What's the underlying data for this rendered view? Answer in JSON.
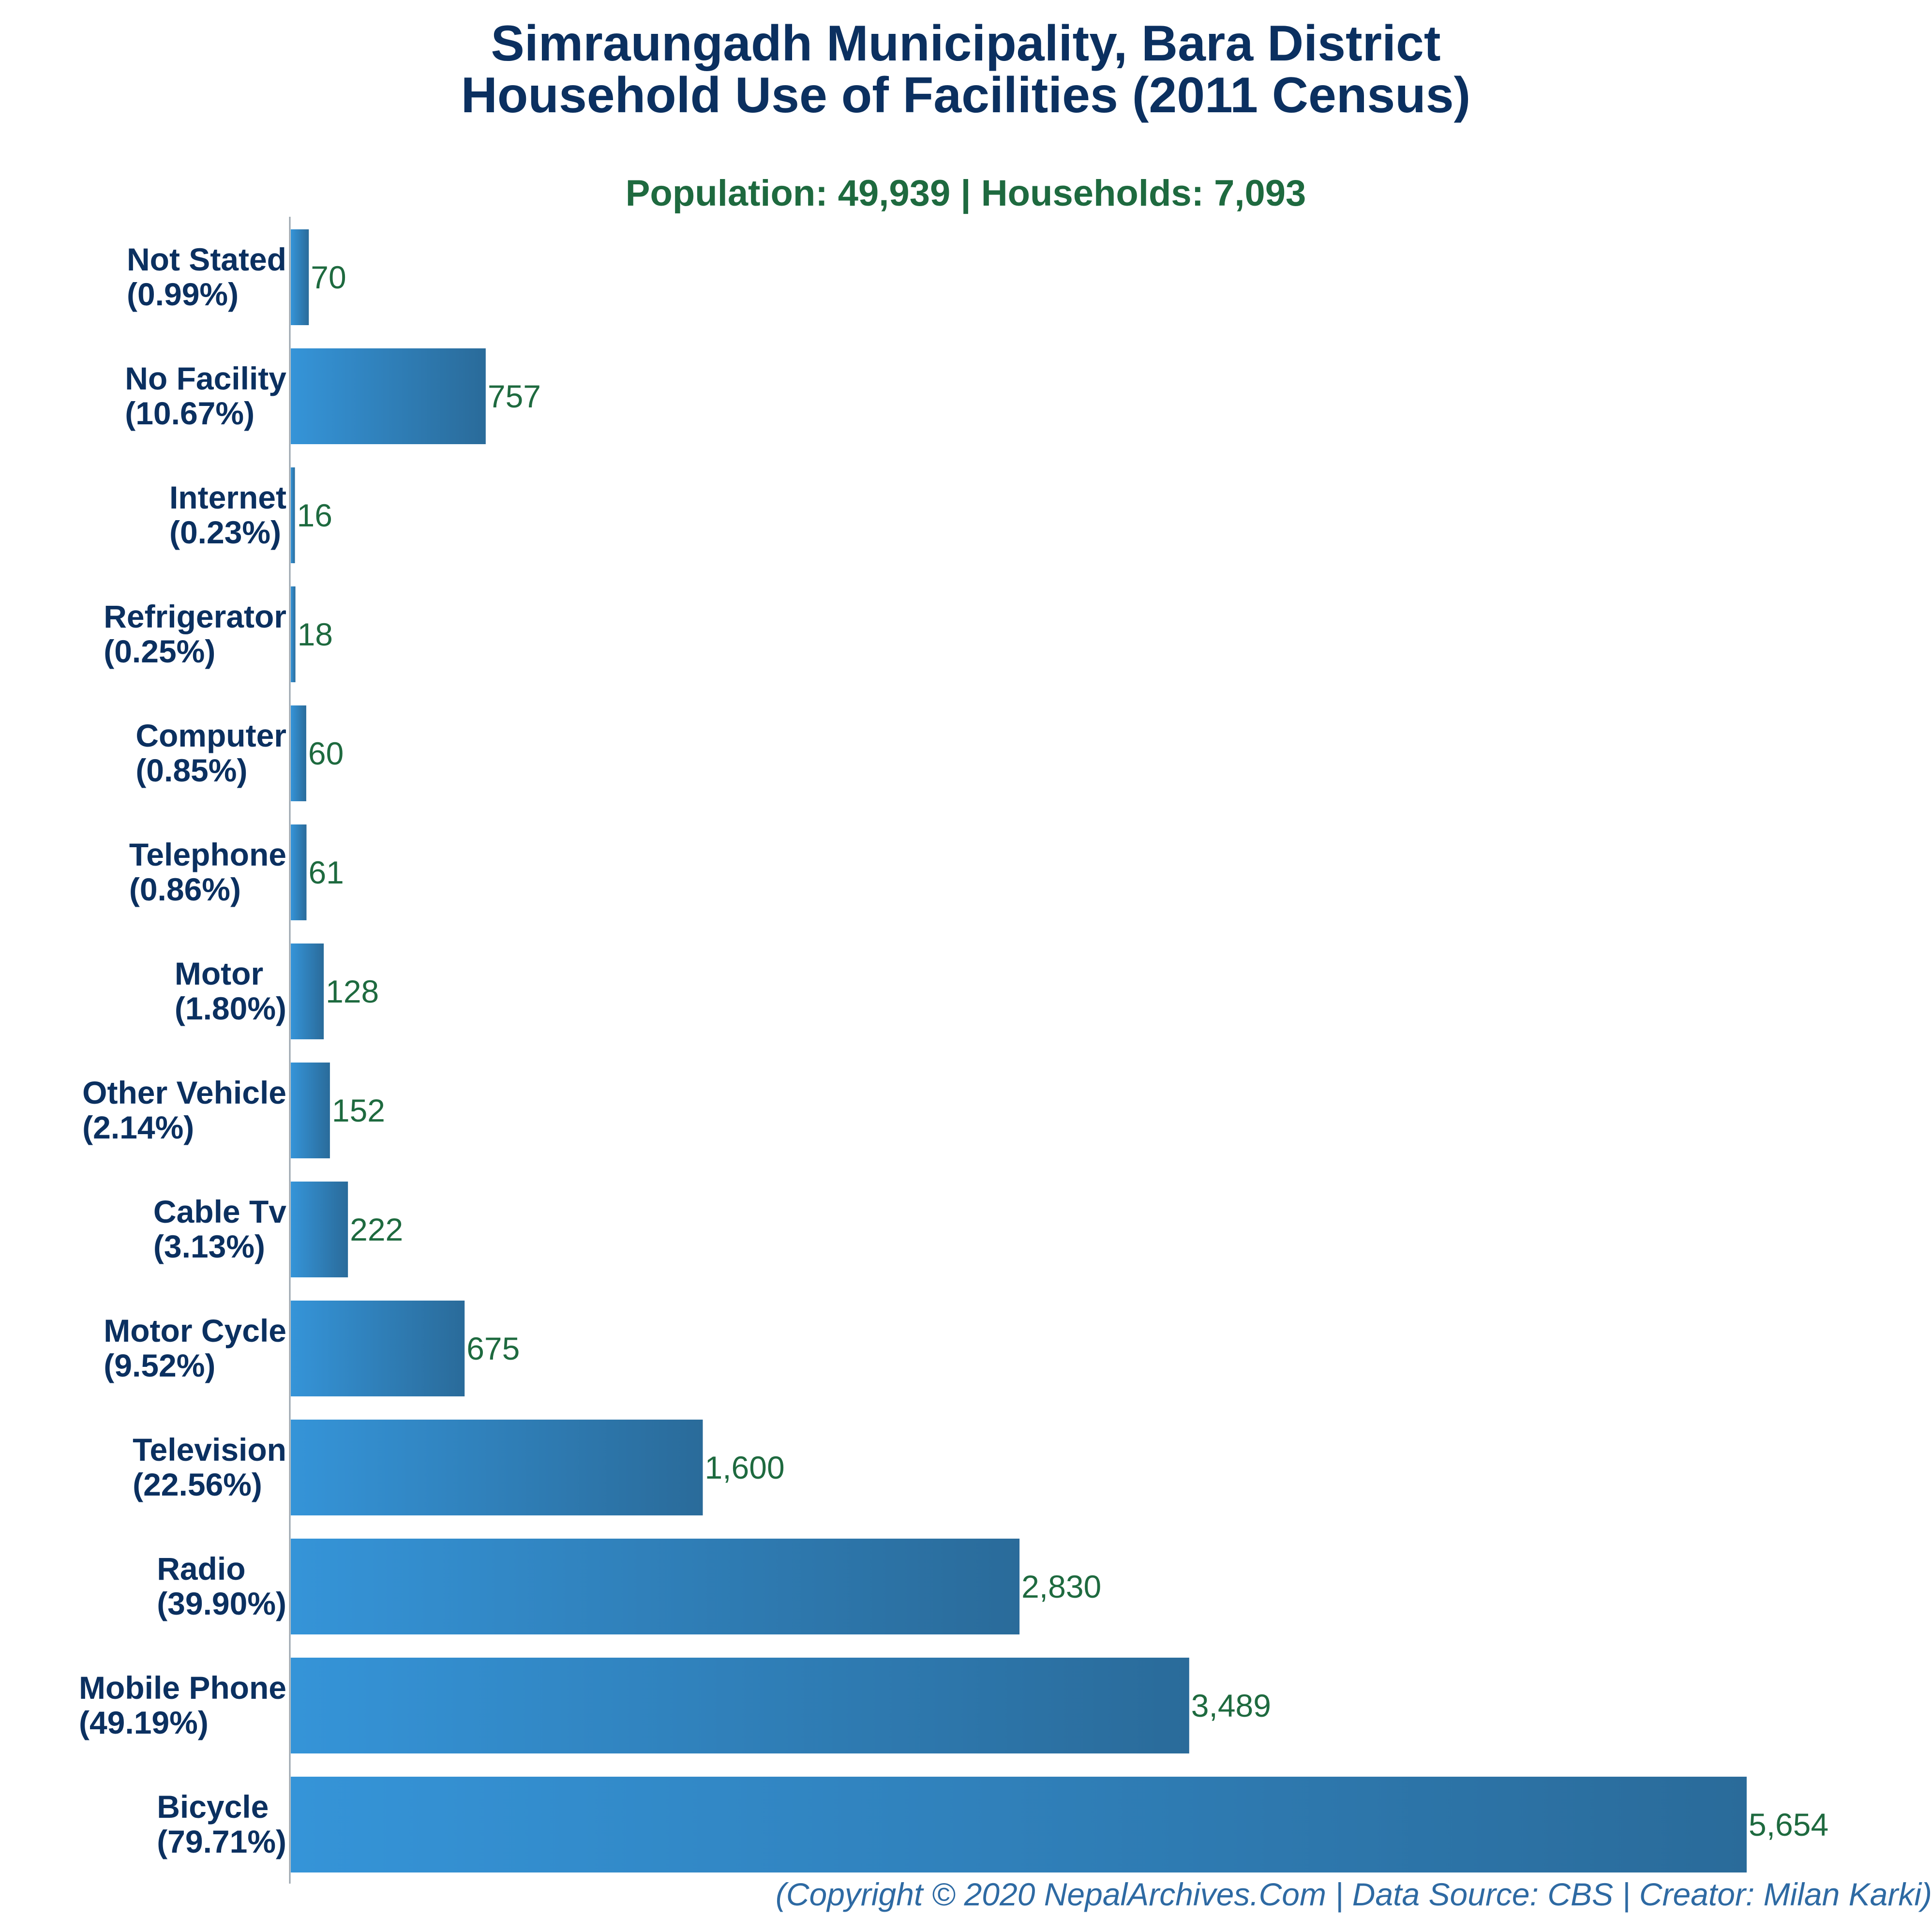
{
  "title_line1": "Simraungadh Municipality, Bara District",
  "title_line2": "Household Use of Facilities (2011 Census)",
  "subtitle": "Population: 49,939 | Households: 7,093",
  "footer": "(Copyright © 2020 NepalArchives.Com | Data Source: CBS | Creator: Milan Karki)",
  "colors": {
    "bar_light": "#3594d8",
    "bar_dark": "#2a6b9a",
    "title": "#0b3060",
    "subtitle": "#1e6a3f",
    "value_label": "#1e6a3f",
    "footer": "#2e6aa3"
  },
  "chart_data": {
    "type": "bar",
    "orientation": "horizontal",
    "title": "Simraungadh Municipality, Bara District Household Use of Facilities (2011 Census)",
    "subtitle": "Population: 49,939 | Households: 7,093",
    "xlabel": "",
    "ylabel": "",
    "grid": false,
    "legend": "none",
    "xlim": [
      0,
      5654
    ],
    "categories": [
      "Not Stated",
      "No Facility",
      "Internet",
      "Refrigerator",
      "Computer",
      "Telephone",
      "Motor",
      "Other Vehicle",
      "Cable Tv",
      "Motor Cycle",
      "Television",
      "Radio",
      "Mobile Phone",
      "Bicycle"
    ],
    "percent_labels": [
      "(0.99%)",
      "(10.67%)",
      "(0.23%)",
      "(0.25%)",
      "(0.85%)",
      "(0.86%)",
      "(1.80%)",
      "(2.14%)",
      "(3.13%)",
      "(9.52%)",
      "(22.56%)",
      "(39.90%)",
      "(49.19%)",
      "(79.71%)"
    ],
    "values": [
      70,
      757,
      16,
      18,
      60,
      61,
      128,
      152,
      222,
      675,
      1600,
      2830,
      3489,
      5654
    ],
    "value_labels": [
      "70",
      "757",
      "16",
      "18",
      "60",
      "61",
      "128",
      "152",
      "222",
      "675",
      "1,600",
      "2,830",
      "3,489",
      "5,654"
    ]
  }
}
